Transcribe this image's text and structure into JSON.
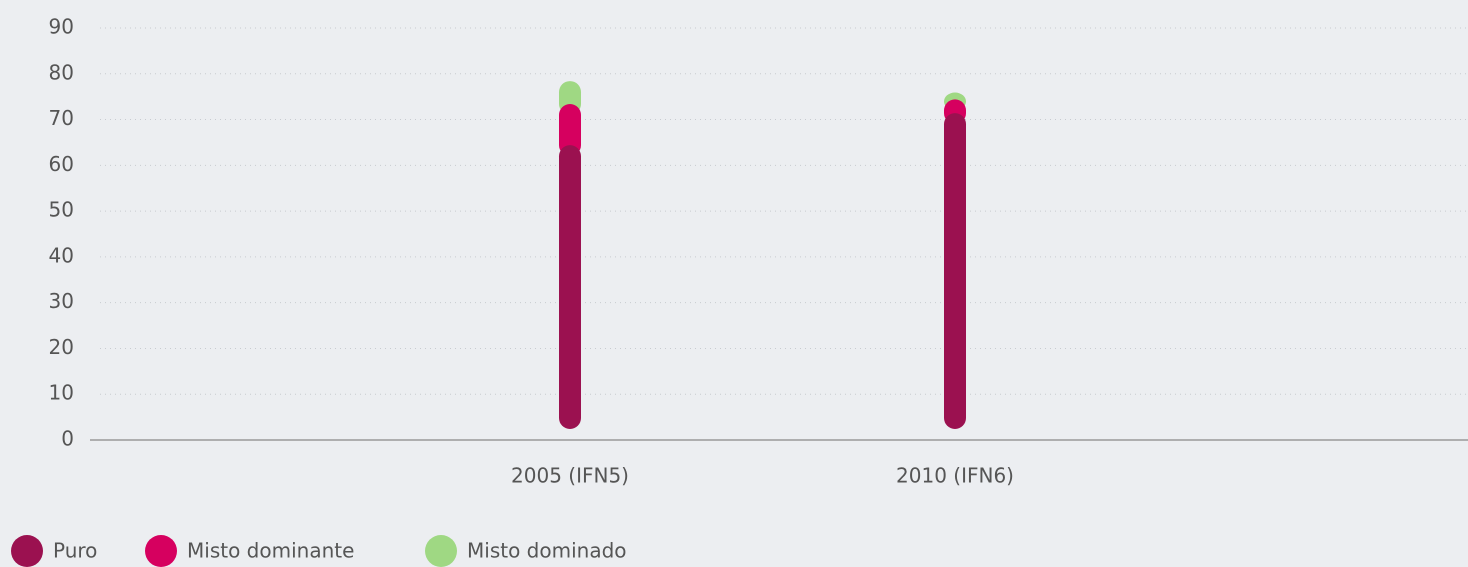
{
  "chart_data": {
    "type": "stacked_bar",
    "categories": [
      "2005 (IFN5)",
      "2010 (IFN6)"
    ],
    "series": [
      {
        "name": "Puro",
        "color": "#9b1150",
        "values": [
          62,
          69
        ]
      },
      {
        "name": "Misto dominante",
        "color": "#d6005f",
        "values": [
          9,
          3
        ]
      },
      {
        "name": "Misto dominado",
        "color": "#9fd883",
        "values": [
          5,
          1.5
        ]
      }
    ],
    "ylim": [
      0,
      90
    ],
    "yticks": [
      0,
      10,
      20,
      30,
      40,
      50,
      60,
      70,
      80,
      90
    ],
    "grid": true,
    "legend": "bottom-left"
  }
}
